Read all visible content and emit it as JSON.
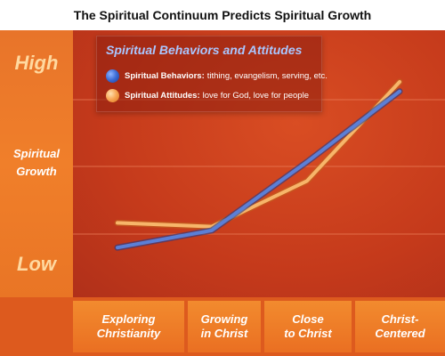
{
  "title": "The Spiritual Continuum Predicts Spiritual Growth",
  "colors": {
    "frame": "#c8391a",
    "plot_bg": "#c53a1b",
    "axis_panel": "#f07f2a",
    "gridline": "#e97a55",
    "behaviors_line": "#5b7fd6",
    "attitudes_line": "#f7b56a",
    "legend_title": "#a9c6ff"
  },
  "y_axis": {
    "high_label": "High",
    "mid_label_line1": "Spiritual",
    "mid_label_line2": "Growth",
    "low_label": "Low"
  },
  "legend": {
    "title": "Spiritual Behaviors and Attitudes",
    "items": [
      {
        "bold": "Spiritual Behaviors:",
        "text": "tithing, evangelism, serving, etc.",
        "icon": "blue-circle-icon"
      },
      {
        "bold": "Spiritual Attitudes:",
        "text": "love for God, love for people",
        "icon": "orange-circle-icon"
      }
    ]
  },
  "x_categories": [
    {
      "line1": "Exploring",
      "line2": "Christianity"
    },
    {
      "line1": "Growing",
      "line2": "in Christ"
    },
    {
      "line1": "Close",
      "line2": "to Christ"
    },
    {
      "line1": "Christ-",
      "line2": "Centered"
    }
  ],
  "chart_data": {
    "type": "line",
    "categories": [
      "Exploring Christianity",
      "Growing in Christ",
      "Close to Christ",
      "Christ-Centered"
    ],
    "series": [
      {
        "name": "Spiritual Behaviors",
        "values": [
          0.13,
          0.22,
          0.58,
          0.95
        ]
      },
      {
        "name": "Spiritual Attitudes",
        "values": [
          0.26,
          0.24,
          0.48,
          1.0
        ]
      }
    ],
    "ylim": [
      0,
      1
    ],
    "grid": true,
    "legend_position": "top-left"
  }
}
